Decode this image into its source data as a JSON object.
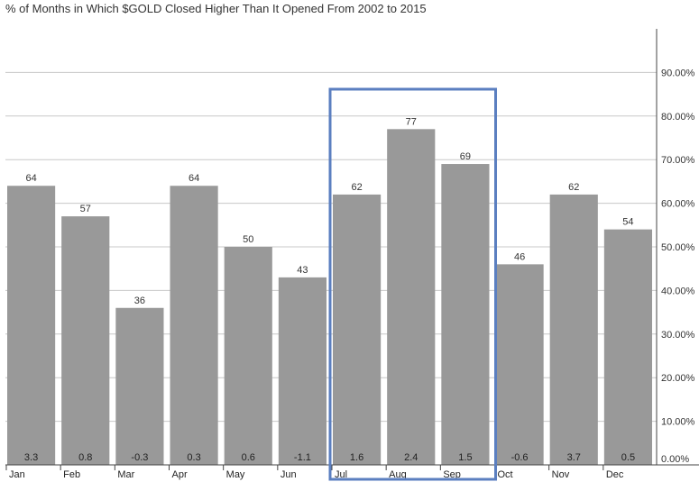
{
  "chart_data": {
    "type": "bar",
    "title": "% of Months in Which $GOLD Closed Higher Than It Opened From 2002 to 2015",
    "categories": [
      "Jan",
      "Feb",
      "Mar",
      "Apr",
      "May",
      "Jun",
      "Jul",
      "Aug",
      "Sep",
      "Oct",
      "Nov",
      "Dec"
    ],
    "values": [
      64,
      57,
      36,
      64,
      50,
      43,
      62,
      77,
      69,
      46,
      62,
      54
    ],
    "bottom_labels": [
      "3.3",
      "0.8",
      "-0.3",
      "0.3",
      "0.6",
      "-1.1",
      "1.6",
      "2.4",
      "1.5",
      "-0.6",
      "3.7",
      "0.5"
    ],
    "ylim": [
      0,
      100
    ],
    "yticks": [
      0,
      10,
      20,
      30,
      40,
      50,
      60,
      70,
      80,
      90
    ],
    "ytick_labels": [
      "0.00%",
      "10.00%",
      "20.00%",
      "30.00%",
      "40.00%",
      "50.00%",
      "60.00%",
      "70.00%",
      "80.00%",
      "90.00%"
    ],
    "y_axis_position": "right",
    "grid": true,
    "bar_color": "#999999",
    "highlight": {
      "categories": [
        "Jul",
        "Aug",
        "Sep"
      ],
      "color": "#5b7fc0"
    }
  }
}
